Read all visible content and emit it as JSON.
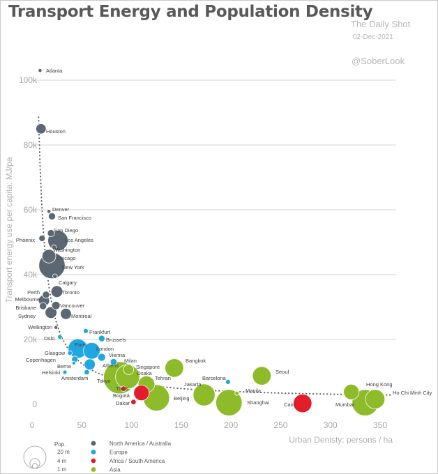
{
  "header": {
    "title": "Transport Energy and Population Density",
    "source": "The Daily Shot",
    "date": "02-Dec-2021",
    "handle": "@SoberLook"
  },
  "chart_data": {
    "type": "scatter",
    "title": "Transport Energy and Population Density",
    "xlabel": "Urban Denisty: persons / ha",
    "ylabel": "Transport energy use per capita: MJ/pa",
    "xlim": [
      0,
      360
    ],
    "ylim": [
      0,
      105000
    ],
    "x_ticks": [
      0,
      50,
      100,
      150,
      200,
      250,
      300,
      350
    ],
    "y_ticks": [
      0,
      20000,
      40000,
      60000,
      80000,
      100000
    ],
    "y_tick_labels": [
      "0",
      "20k",
      "40k",
      "60k",
      "80k",
      "100k"
    ],
    "grid": "horizontal",
    "trendline": "dotted",
    "size_legend": {
      "title": "Pop.",
      "labels": [
        "20 m",
        "4 m",
        "1 m"
      ],
      "values_m": [
        20,
        4,
        1
      ]
    },
    "regions": [
      {
        "name": "North America / Australia",
        "color": "#5b6772"
      },
      {
        "name": "Europe",
        "color": "#1ea7e0"
      },
      {
        "name": "Africa / South America",
        "color": "#e41d2b"
      },
      {
        "name": "Asia",
        "color": "#8dbb2a"
      }
    ],
    "points": [
      {
        "city": "Atlanta",
        "x": 8,
        "y": 103000,
        "region": 0,
        "pop_m": 0.4
      },
      {
        "city": "Houston",
        "x": 9,
        "y": 85000,
        "region": 0,
        "pop_m": 3
      },
      {
        "city": "Denver",
        "x": 17,
        "y": 59500,
        "region": 0,
        "pop_m": 0.4
      },
      {
        "city": "San Francisco",
        "x": 20,
        "y": 58000,
        "region": 0,
        "pop_m": 1.5
      },
      {
        "city": "San Diego",
        "x": 19,
        "y": 52800,
        "region": 0,
        "pop_m": 1.5
      },
      {
        "city": "Phoenix",
        "x": 10,
        "y": 51200,
        "region": 0,
        "pop_m": 1.2
      },
      {
        "city": "Los Angeles",
        "x": 26,
        "y": 50500,
        "region": 0,
        "pop_m": 12
      },
      {
        "city": "Washington",
        "x": 22,
        "y": 48500,
        "region": 0,
        "pop_m": 0.6
      },
      {
        "city": "Chicago",
        "x": 17,
        "y": 45700,
        "region": 0,
        "pop_m": 5.5
      },
      {
        "city": "New York",
        "x": 20,
        "y": 42800,
        "region": 0,
        "pop_m": 20
      },
      {
        "city": "Calgary",
        "x": 23,
        "y": 39500,
        "region": 0,
        "pop_m": 0.6
      },
      {
        "city": "Toronto",
        "x": 25,
        "y": 34800,
        "region": 0,
        "pop_m": 4
      },
      {
        "city": "Perth",
        "x": 14,
        "y": 33800,
        "region": 0,
        "pop_m": 1.5
      },
      {
        "city": "Melbourne",
        "x": 12,
        "y": 32000,
        "region": 0,
        "pop_m": 3.5
      },
      {
        "city": "Vancouver",
        "x": 24,
        "y": 30500,
        "region": 0,
        "pop_m": 2
      },
      {
        "city": "Brisbane",
        "x": 11,
        "y": 30300,
        "region": 0,
        "pop_m": 1.5
      },
      {
        "city": "Sydney",
        "x": 19,
        "y": 28300,
        "region": 0,
        "pop_m": 4
      },
      {
        "city": "Montreal",
        "x": 34,
        "y": 27900,
        "region": 0,
        "pop_m": 3.5
      },
      {
        "city": "Wellington",
        "x": 24,
        "y": 23700,
        "region": 0,
        "pop_m": 0.3
      },
      {
        "city": "Frankfurt",
        "x": 54,
        "y": 22600,
        "region": 1,
        "pop_m": 0.7
      },
      {
        "city": "Oslo",
        "x": 28,
        "y": 20800,
        "region": 1,
        "pop_m": 0.6
      },
      {
        "city": "Brussels",
        "x": 70,
        "y": 20300,
        "region": 1,
        "pop_m": 1.2
      },
      {
        "city": "Paris",
        "x": 46,
        "y": 17200,
        "region": 1,
        "pop_m": 11
      },
      {
        "city": "London",
        "x": 60,
        "y": 16500,
        "region": 1,
        "pop_m": 8
      },
      {
        "city": "Glasgow",
        "x": 38,
        "y": 15800,
        "region": 1,
        "pop_m": 0.6
      },
      {
        "city": "Copenhagen",
        "x": 43,
        "y": 13900,
        "region": 1,
        "pop_m": 1.2
      },
      {
        "city": "Vienna",
        "x": 70,
        "y": 14500,
        "region": 1,
        "pop_m": 1.8
      },
      {
        "city": "Milan",
        "x": 82,
        "y": 13100,
        "region": 1,
        "pop_m": 1.3
      },
      {
        "city": "Berne",
        "x": 42,
        "y": 12700,
        "region": 1,
        "pop_m": 0.3
      },
      {
        "city": "Athens",
        "x": 58,
        "y": 12300,
        "region": 1,
        "pop_m": 3.5
      },
      {
        "city": "Singapore",
        "x": 97,
        "y": 10700,
        "region": 3,
        "pop_m": 3
      },
      {
        "city": "Helsinki",
        "x": 33,
        "y": 9900,
        "region": 1,
        "pop_m": 0.5
      },
      {
        "city": "Amsterdam",
        "x": 55,
        "y": 9900,
        "region": 1,
        "pop_m": 0.8
      },
      {
        "city": "Osaka",
        "x": 96,
        "y": 8500,
        "region": 3,
        "pop_m": 17
      },
      {
        "city": "Tokyo",
        "x": 88,
        "y": 8200,
        "region": 3,
        "pop_m": 30
      },
      {
        "city": "Bangkok",
        "x": 143,
        "y": 11200,
        "region": 3,
        "pop_m": 10
      },
      {
        "city": "Barcelona",
        "x": 197,
        "y": 6900,
        "region": 1,
        "pop_m": 0.7
      },
      {
        "city": "Seoul",
        "x": 231,
        "y": 8800,
        "region": 3,
        "pop_m": 10
      },
      {
        "city": "Tehran",
        "x": 115,
        "y": 6200,
        "region": 3,
        "pop_m": 8
      },
      {
        "city": "Jakarta",
        "x": 173,
        "y": 2900,
        "region": 3,
        "pop_m": 14
      },
      {
        "city": "Tunis",
        "x": 92,
        "y": 4800,
        "region": 2,
        "pop_m": 0.8
      },
      {
        "city": "Bogotá",
        "x": 110,
        "y": 3500,
        "region": 2,
        "pop_m": 7
      },
      {
        "city": "Beijing",
        "x": 125,
        "y": 2000,
        "region": 3,
        "pop_m": 20
      },
      {
        "city": "Manila",
        "x": 206,
        "y": 3400,
        "region": 3,
        "pop_m": 0.5
      },
      {
        "city": "Dakar",
        "x": 102,
        "y": 700,
        "region": 2,
        "pop_m": 0.8
      },
      {
        "city": "Shanghai",
        "x": 198,
        "y": 500,
        "region": 3,
        "pop_m": 20
      },
      {
        "city": "Cairo",
        "x": 272,
        "y": 300,
        "region": 2,
        "pop_m": 10
      },
      {
        "city": "Mumbai",
        "x": 335,
        "y": 500,
        "region": 3,
        "pop_m": 20
      },
      {
        "city": "Hong Kong",
        "x": 321,
        "y": 3800,
        "region": 3,
        "pop_m": 7
      },
      {
        "city": "Ho Chi Minh City",
        "x": 345,
        "y": 1600,
        "region": 3,
        "pop_m": 11
      }
    ]
  }
}
